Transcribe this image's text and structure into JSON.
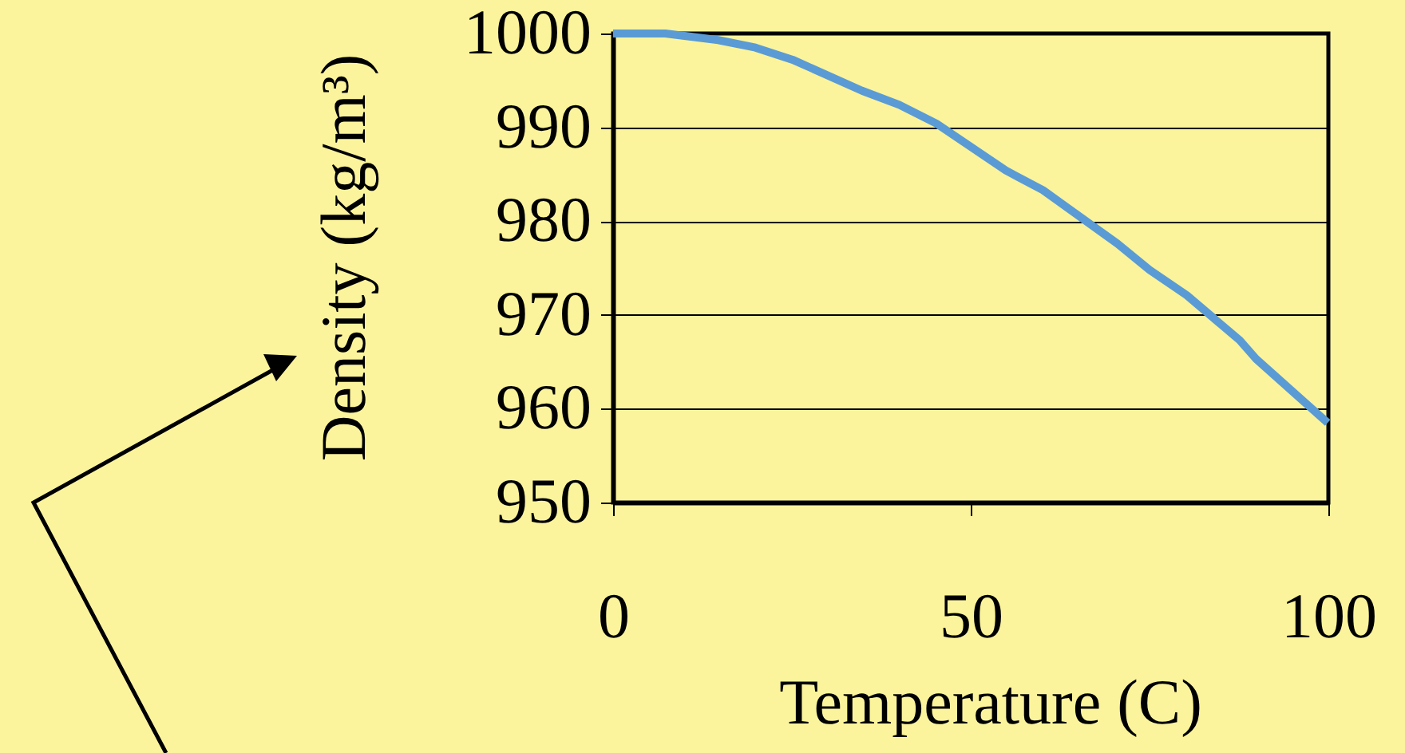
{
  "chart_data": {
    "type": "line",
    "xlabel": "Temperature (C)",
    "ylabel": "Density (kg/m³)",
    "x": [
      0,
      7.3,
      14.7,
      19.9,
      25.1,
      34.8,
      40,
      45.2,
      54.9,
      60.1,
      70.5,
      75,
      80.2,
      87.6,
      89.9,
      99.9
    ],
    "series": [
      {
        "color": "#5b9bd5",
        "values": [
          1000,
          1000,
          999.3,
          998.5,
          997.2,
          993.9,
          992.4,
          990.4,
          985.4,
          983.3,
          977.6,
          974.8,
          972.1,
          967.3,
          965.3,
          958.5
        ]
      }
    ],
    "xlim": [
      0,
      100
    ],
    "xticks": [
      0,
      50,
      100
    ],
    "ylim": [
      950,
      1000
    ],
    "yticks": [
      950,
      960,
      970,
      980,
      990,
      1000
    ],
    "grid": "y"
  }
}
